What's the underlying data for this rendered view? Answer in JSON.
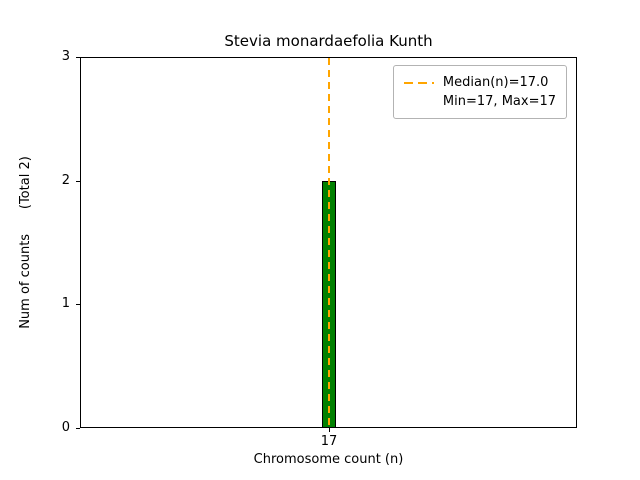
{
  "chart_data": {
    "type": "bar",
    "title": "Stevia monardaefolia Kunth",
    "xlabel": "Chromosome count (n)",
    "ylabel": "Num of counts      (Total 2)",
    "categories": [
      "17"
    ],
    "values": [
      2
    ],
    "ylim": [
      0,
      3
    ],
    "yticks": [
      0,
      1,
      2,
      3
    ],
    "median": 17.0,
    "min": 17,
    "max": 17,
    "bar_color": "#008000",
    "bar_edge_color": "#000000",
    "median_color": "#FFA500",
    "legend": {
      "median_label": "Median(n)=17.0",
      "minmax_label": "Min=17, Max=17"
    },
    "legend_position": "upper right",
    "grid": false
  }
}
